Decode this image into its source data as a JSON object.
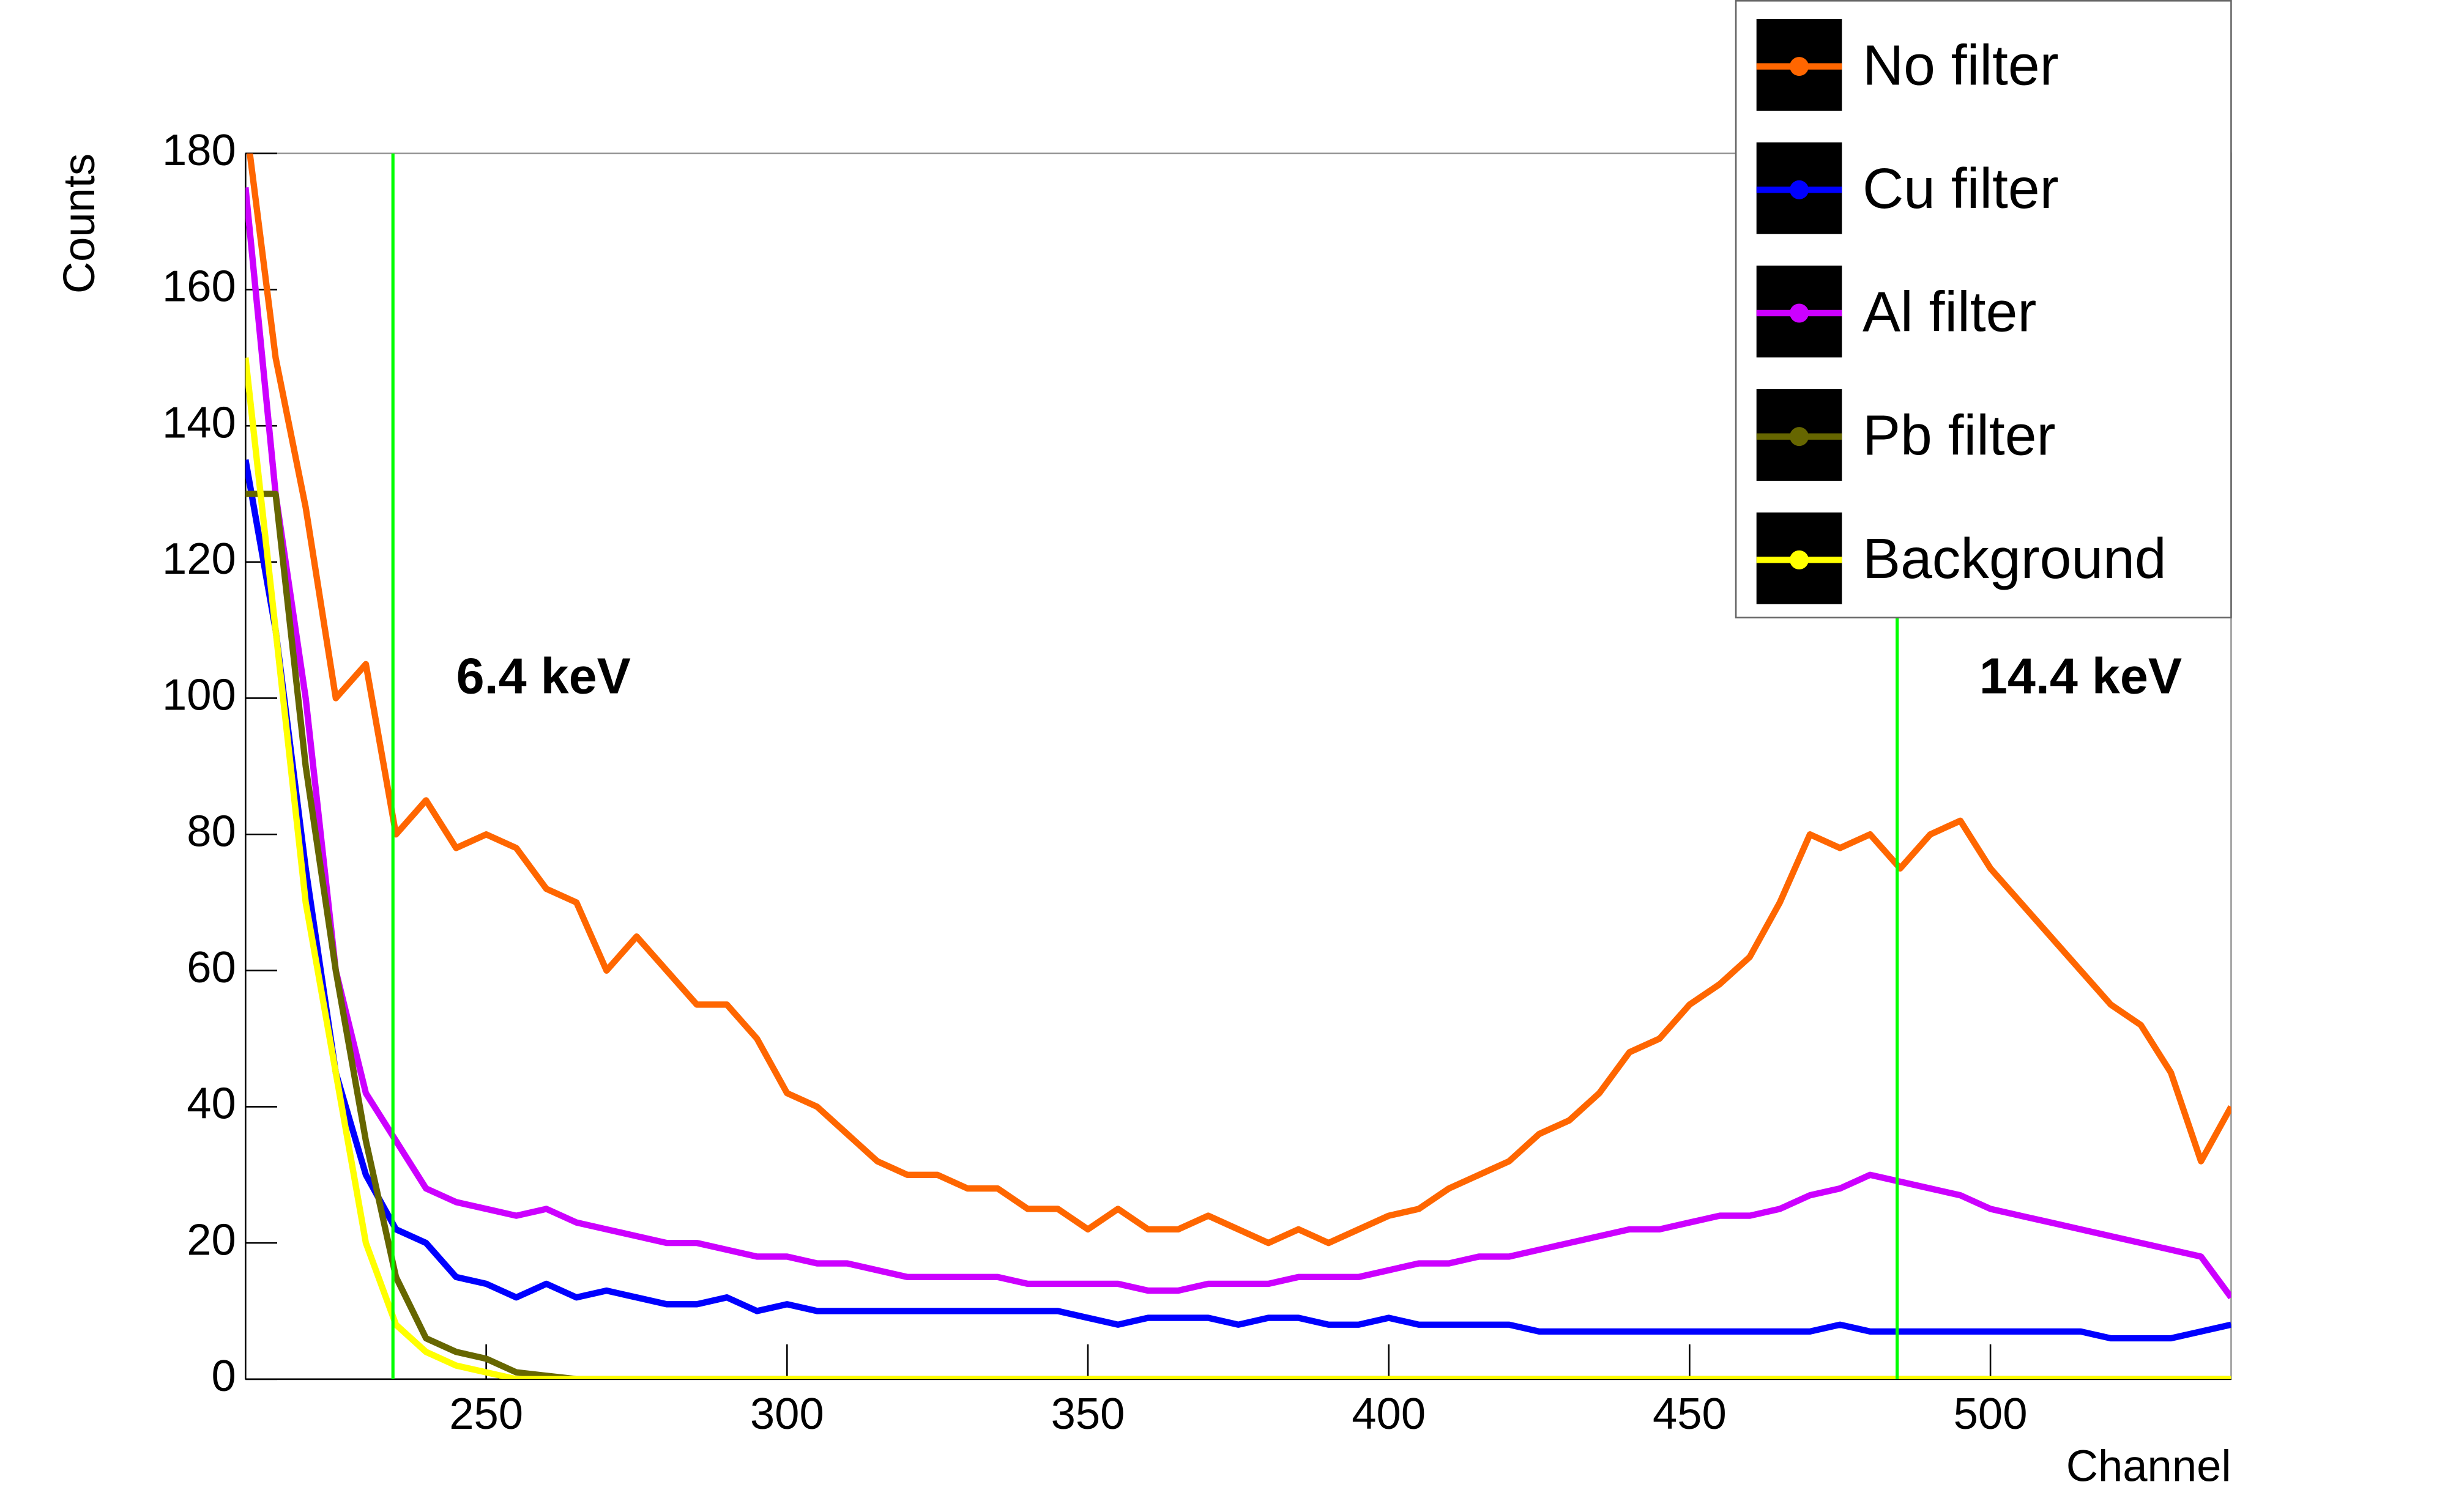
{
  "chart_data": {
    "type": "line",
    "xlabel": "Channel",
    "ylabel": "Counts",
    "x": [
      210,
      215,
      220,
      225,
      230,
      235,
      240,
      245,
      250,
      255,
      260,
      265,
      270,
      275,
      280,
      285,
      290,
      295,
      300,
      305,
      310,
      315,
      320,
      325,
      330,
      335,
      340,
      345,
      350,
      355,
      360,
      365,
      370,
      375,
      380,
      385,
      390,
      395,
      400,
      405,
      410,
      415,
      420,
      425,
      430,
      435,
      440,
      445,
      450,
      455,
      460,
      465,
      470,
      475,
      480,
      485,
      490,
      495,
      500,
      505,
      510,
      515,
      520,
      525,
      530,
      535,
      540
    ],
    "series": [
      {
        "name": "No filter",
        "color": "#ff6600",
        "values": [
          185,
          150,
          128,
          100,
          105,
          80,
          85,
          78,
          80,
          78,
          72,
          70,
          60,
          65,
          60,
          55,
          55,
          50,
          42,
          40,
          36,
          32,
          30,
          30,
          28,
          28,
          25,
          25,
          22,
          25,
          22,
          22,
          24,
          22,
          20,
          22,
          20,
          22,
          24,
          25,
          28,
          30,
          32,
          36,
          38,
          42,
          48,
          50,
          55,
          58,
          62,
          70,
          80,
          78,
          80,
          75,
          80,
          82,
          75,
          70,
          65,
          60,
          55,
          52,
          45,
          32,
          40
        ]
      },
      {
        "name": "Cu filter",
        "color": "#0000ff",
        "values": [
          135,
          110,
          75,
          45,
          30,
          22,
          20,
          15,
          14,
          12,
          14,
          12,
          13,
          12,
          11,
          11,
          12,
          10,
          11,
          10,
          10,
          10,
          10,
          10,
          10,
          10,
          10,
          10,
          9,
          8,
          9,
          9,
          9,
          8,
          9,
          9,
          8,
          8,
          9,
          8,
          8,
          8,
          8,
          7,
          7,
          7,
          7,
          7,
          7,
          7,
          7,
          7,
          7,
          8,
          7,
          7,
          7,
          7,
          7,
          7,
          7,
          7,
          6,
          6,
          6,
          7,
          8
        ]
      },
      {
        "name": "Al filter",
        "color": "#cc00ff",
        "values": [
          175,
          130,
          100,
          60,
          42,
          35,
          28,
          26,
          25,
          24,
          25,
          23,
          22,
          21,
          20,
          20,
          19,
          18,
          18,
          17,
          17,
          16,
          15,
          15,
          15,
          15,
          14,
          14,
          14,
          14,
          13,
          13,
          14,
          14,
          14,
          15,
          15,
          15,
          16,
          17,
          17,
          18,
          18,
          19,
          20,
          21,
          22,
          22,
          23,
          24,
          24,
          25,
          27,
          28,
          30,
          29,
          28,
          27,
          25,
          24,
          23,
          22,
          21,
          20,
          19,
          18,
          12
        ]
      },
      {
        "name": "Pb filter",
        "color": "#666600",
        "values": [
          130,
          130,
          90,
          60,
          35,
          15,
          6,
          4,
          3,
          1,
          0.5,
          0,
          0,
          0,
          0,
          0,
          0,
          0,
          0,
          0,
          0,
          0,
          0,
          0,
          0,
          0,
          0,
          0,
          0,
          0,
          0,
          0,
          0,
          0,
          0,
          0,
          0,
          0,
          0,
          0,
          0,
          0,
          0,
          0,
          0,
          0,
          0,
          0,
          0,
          0,
          0,
          0,
          0,
          0,
          0,
          0,
          0,
          0,
          0,
          0,
          0,
          0,
          0,
          0,
          0,
          0,
          0
        ]
      },
      {
        "name": "Background",
        "color": "#ffff00",
        "values": [
          150,
          110,
          70,
          45,
          20,
          8,
          4,
          2,
          1,
          0,
          0,
          0,
          0,
          0,
          0,
          0,
          0,
          0,
          0,
          0,
          0,
          0,
          0,
          0,
          0,
          0,
          0,
          0,
          0,
          0,
          0,
          0,
          0,
          0,
          0,
          0,
          0,
          0,
          0,
          0,
          0,
          0,
          0,
          0,
          0,
          0,
          0,
          0,
          0,
          0,
          0,
          0,
          0,
          0,
          0,
          0,
          0,
          0,
          0,
          0,
          0,
          0,
          0,
          0,
          0,
          0,
          0
        ]
      }
    ],
    "xlim": [
      210,
      540
    ],
    "ylim": [
      0,
      180
    ],
    "xticks": [
      250,
      300,
      350,
      400,
      450,
      500
    ],
    "yticks": [
      0,
      20,
      40,
      60,
      80,
      100,
      120,
      140,
      160,
      180
    ],
    "vlines": [
      {
        "value": 234.5,
        "label": "6.4 keV",
        "color": "#00ff00"
      },
      {
        "value": 484.5,
        "label": "14.4 keV",
        "color": "#00ff00"
      }
    ],
    "legend": "upper right"
  }
}
